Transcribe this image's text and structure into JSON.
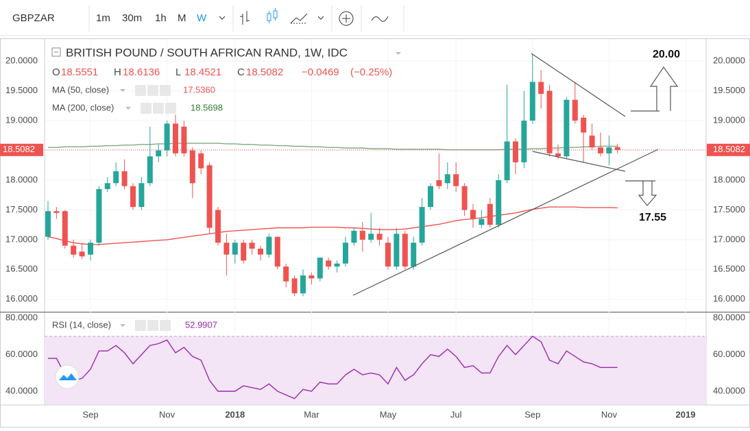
{
  "toolbar": {
    "symbol": "GBPZAR",
    "intervals": [
      "1m",
      "30m",
      "1h",
      "M",
      "W"
    ]
  },
  "chart_data": {
    "type": "candlestick",
    "title": "BRITISH POUND / SOUTH AFRICAN RAND, 1W, IDC",
    "legend": {
      "o": "O",
      "h": "H",
      "l": "L",
      "c": "C",
      "change": {
        "value": -0.0469,
        "label": "−0.0469"
      },
      "change_pct": {
        "value": -0.25,
        "label": "(−0.25%)"
      }
    },
    "up_color": "#26a69a",
    "down_color": "#ef5350",
    "categories": [
      null,
      null,
      null,
      null,
      null,
      "Sep",
      null,
      null,
      null,
      null,
      null,
      null,
      null,
      null,
      "Nov",
      null,
      null,
      null,
      null,
      null,
      null,
      null,
      "2018",
      null,
      null,
      null,
      null,
      null,
      null,
      null,
      null,
      "Mar",
      null,
      null,
      null,
      null,
      null,
      null,
      null,
      null,
      "May",
      null,
      null,
      null,
      null,
      null,
      null,
      null,
      "Jul",
      null,
      null,
      null,
      null,
      null,
      null,
      null,
      null,
      "Sep",
      null,
      null,
      null,
      null,
      null,
      null,
      null,
      null,
      "Nov",
      null,
      null,
      null,
      null,
      null,
      null,
      null,
      null,
      "2019"
    ],
    "open": [
      17.05,
      17.48,
      17.48,
      16.9,
      16.8,
      16.75,
      16.95,
      17.85,
      17.95,
      18.15,
      17.9,
      17.55,
      17.95,
      18.4,
      18.5,
      18.95,
      18.9,
      18.5,
      18.45,
      18.25,
      17.5,
      16.95,
      16.75,
      16.95,
      16.95,
      16.85,
      16.75,
      17.05,
      16.55,
      16.35,
      16.1,
      16.4,
      16.35,
      16.65,
      16.55,
      16.6,
      16.95,
      17.15,
      17.0,
      17.1,
      16.95,
      16.55,
      17.1,
      16.55,
      16.95,
      17.55,
      18.0,
      17.95,
      18.1,
      17.9,
      17.5,
      17.25,
      17.6,
      17.25,
      18.0,
      18.65,
      18.3,
      19.0,
      19.65,
      19.5,
      18.45,
      18.4,
      19.35,
      19.05,
      18.75,
      18.55,
      18.45,
      18.5551,
      null,
      null,
      null,
      null,
      null,
      null,
      null,
      null
    ],
    "high": [
      17.65,
      17.55,
      17.5,
      17.0,
      16.95,
      17.0,
      17.9,
      18.05,
      18.3,
      18.35,
      17.95,
      18.05,
      18.9,
      18.6,
      19.0,
      19.1,
      19.0,
      18.55,
      18.5,
      18.3,
      17.55,
      17.1,
      17.0,
      17.0,
      17.0,
      16.9,
      17.1,
      17.05,
      16.6,
      16.4,
      16.5,
      16.45,
      16.7,
      16.7,
      16.65,
      17.05,
      17.2,
      17.3,
      17.45,
      17.2,
      17.05,
      17.2,
      17.15,
      17.05,
      17.7,
      17.95,
      18.45,
      18.3,
      18.3,
      17.95,
      17.6,
      17.5,
      17.7,
      18.1,
      19.6,
      18.7,
      19.5,
      20.12,
      19.85,
      19.6,
      18.6,
      19.4,
      19.65,
      19.1,
      18.95,
      18.8,
      18.75,
      18.6136,
      null,
      null,
      null,
      null,
      null,
      null,
      null,
      null
    ],
    "low": [
      17.0,
      17.35,
      16.85,
      16.7,
      16.68,
      16.65,
      16.9,
      17.8,
      17.9,
      17.85,
      17.5,
      17.5,
      17.9,
      18.3,
      18.4,
      18.4,
      18.4,
      17.7,
      18.1,
      17.1,
      16.9,
      16.4,
      16.6,
      16.6,
      16.75,
      16.65,
      16.7,
      16.5,
      16.2,
      16.05,
      16.05,
      16.25,
      16.3,
      16.5,
      16.45,
      16.55,
      16.9,
      16.8,
      16.95,
      16.9,
      16.5,
      16.5,
      16.5,
      16.5,
      16.9,
      17.5,
      17.85,
      17.85,
      17.8,
      17.4,
      17.2,
      17.2,
      17.2,
      17.2,
      17.95,
      18.1,
      18.2,
      18.95,
      19.2,
      18.4,
      18.35,
      18.35,
      18.95,
      18.3,
      18.5,
      18.4,
      18.25,
      18.4521,
      null,
      null,
      null,
      null,
      null,
      null,
      null,
      null
    ],
    "close": [
      17.48,
      17.45,
      16.9,
      16.75,
      16.72,
      16.95,
      17.85,
      17.95,
      18.15,
      17.9,
      17.55,
      17.95,
      18.4,
      18.5,
      18.95,
      18.45,
      18.45,
      17.95,
      18.2,
      17.2,
      16.95,
      16.75,
      16.95,
      16.65,
      16.85,
      16.75,
      17.05,
      16.55,
      16.3,
      16.1,
      16.4,
      16.35,
      16.7,
      16.55,
      16.6,
      16.95,
      17.15,
      17.0,
      17.1,
      17.0,
      16.55,
      17.1,
      16.55,
      16.95,
      17.55,
      17.9,
      17.9,
      18.1,
      17.9,
      17.5,
      17.35,
      17.35,
      17.25,
      18.0,
      18.65,
      18.3,
      19.0,
      19.65,
      19.45,
      18.45,
      18.4,
      19.35,
      19.0,
      18.8,
      18.55,
      18.45,
      18.55,
      18.5082,
      null,
      null,
      null,
      null,
      null,
      null,
      null,
      null
    ],
    "overlays": [
      {
        "name": "MA (50, close)",
        "color": "#ef5350",
        "last_label": "17.5360",
        "values": [
          17.05,
          17.02,
          16.98,
          16.95,
          16.93,
          16.92,
          16.92,
          16.93,
          16.94,
          16.95,
          16.96,
          16.97,
          16.98,
          16.99,
          17.0,
          17.02,
          17.04,
          17.06,
          17.08,
          17.1,
          17.12,
          17.14,
          17.15,
          17.16,
          17.17,
          17.18,
          17.19,
          17.2,
          17.2,
          17.2,
          17.2,
          17.21,
          17.21,
          17.21,
          17.21,
          17.2,
          17.2,
          17.19,
          17.18,
          17.17,
          17.17,
          17.17,
          17.18,
          17.2,
          17.22,
          17.24,
          17.26,
          17.29,
          17.32,
          17.34,
          17.35,
          17.37,
          17.39,
          17.41,
          17.43,
          17.45,
          17.48,
          17.51,
          17.53,
          17.55,
          17.55,
          17.55,
          17.55,
          17.54,
          17.54,
          17.54,
          17.54,
          17.536,
          null,
          null,
          null,
          null,
          null,
          null,
          null,
          null
        ]
      },
      {
        "name": "MA (200, close)",
        "color": "#7fa87f",
        "last_label": "18.5698",
        "values": [
          18.55,
          18.55,
          18.56,
          18.56,
          18.56,
          18.57,
          18.57,
          18.58,
          18.58,
          18.59,
          18.59,
          18.6,
          18.6,
          18.61,
          18.61,
          18.62,
          18.62,
          18.62,
          18.62,
          18.62,
          18.62,
          18.61,
          18.61,
          18.6,
          18.6,
          18.59,
          18.59,
          18.58,
          18.58,
          18.57,
          18.57,
          18.56,
          18.56,
          18.55,
          18.55,
          18.54,
          18.54,
          18.54,
          18.53,
          18.53,
          18.53,
          18.52,
          18.52,
          18.52,
          18.52,
          18.52,
          18.52,
          18.51,
          18.51,
          18.51,
          18.51,
          18.51,
          18.51,
          18.51,
          18.52,
          18.52,
          18.52,
          18.53,
          18.53,
          18.54,
          18.54,
          18.55,
          18.55,
          18.56,
          18.56,
          18.57,
          18.57,
          18.5698,
          null,
          null,
          null,
          null,
          null,
          null,
          null,
          null
        ]
      }
    ],
    "ylim": [
      15.79,
      20.37
    ],
    "yticks": [
      {
        "value": 16,
        "label": "16.0000"
      },
      {
        "value": 16.5,
        "label": "16.5000"
      },
      {
        "value": 17,
        "label": "17.0000"
      },
      {
        "value": 17.5,
        "label": "17.5000"
      },
      {
        "value": 18,
        "label": "18.0000"
      },
      {
        "value": 18.5,
        "label": "18.5000"
      },
      {
        "value": 19,
        "label": "19.0000"
      },
      {
        "value": 19.5,
        "label": "19.5000"
      },
      {
        "value": 20,
        "label": "20.0000"
      }
    ],
    "annotations": [
      "20.00",
      "17.55"
    ],
    "rsi": {
      "name": "RSI (14, close)",
      "color": "#9c27b0",
      "last_label": "52.9907",
      "values": [
        58,
        58,
        49,
        46,
        47,
        52,
        62,
        62,
        65,
        61,
        55,
        60,
        65,
        66,
        68,
        61,
        64,
        59,
        57,
        46,
        40,
        40,
        40,
        43,
        42,
        41,
        44,
        40,
        38,
        36,
        41,
        40,
        45,
        44,
        44,
        49,
        52,
        49,
        50,
        49,
        44,
        53,
        46,
        49,
        55,
        60,
        59,
        63,
        59,
        53,
        54,
        50,
        50,
        59,
        65,
        60,
        65,
        70,
        67,
        57,
        55,
        62,
        59,
        56,
        55,
        53,
        53,
        52.9907,
        null,
        null,
        null,
        null,
        null,
        null,
        null,
        null
      ],
      "ylim": [
        32.9,
        83.4
      ],
      "yticks": [
        {
          "value": 40,
          "label": "40.0000"
        },
        {
          "value": 60,
          "label": "60.0000"
        },
        {
          "value": 80,
          "label": "80.0000"
        }
      ],
      "bands": [
        30,
        70
      ]
    }
  }
}
